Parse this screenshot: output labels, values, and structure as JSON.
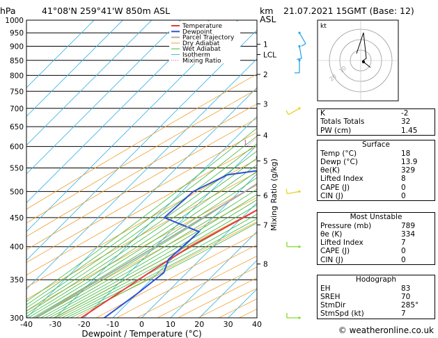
{
  "header": {
    "hpa_label": "hPa",
    "location": "41°08'N  259°41'W  850m  ASL",
    "km_label": "km",
    "asl_label": "ASL",
    "datetime": "21.07.2021  15GMT  (Base: 12)"
  },
  "chart_data": {
    "type": "line",
    "title": "",
    "xlabel": "Dewpoint / Temperature (°C)",
    "ylabel": "hPa",
    "xlim": [
      -40,
      40
    ],
    "ylim": [
      1000,
      300
    ],
    "y_scale": "log",
    "x_ticks": [
      "-40",
      "-30",
      "-20",
      "-10",
      "0",
      "10",
      "20",
      "30",
      "40"
    ],
    "pressure_ticks": [
      300,
      350,
      400,
      450,
      500,
      550,
      600,
      650,
      700,
      750,
      800,
      850,
      900,
      950,
      1000
    ],
    "km_ticks": [
      {
        "label": "8",
        "p": 373
      },
      {
        "label": "7",
        "p": 437
      },
      {
        "label": "6",
        "p": 492
      },
      {
        "label": "5",
        "p": 566
      },
      {
        "label": "4",
        "p": 628
      },
      {
        "label": "3",
        "p": 713
      },
      {
        "label": "2",
        "p": 803
      },
      {
        "label": "LCL",
        "p": 870
      },
      {
        "label": "1",
        "p": 907
      }
    ],
    "mixing_ratio_label": "Mixing Ratio (g/kg)",
    "mixing_ratio_values": [
      "1",
      "2",
      "3",
      "4",
      "6",
      "8",
      "10",
      "15",
      "20",
      "25"
    ],
    "legend": [
      "Temperature",
      "Dewpoint",
      "Parcel Trajectory",
      "Dry Adiabat",
      "Wet Adiabat",
      "Isotherm",
      "Mixing Ratio"
    ],
    "legend_placement": "top-left",
    "series": [
      {
        "name": "Temperature",
        "color": "#e8383d",
        "points": [
          [
            915,
            20.5
          ],
          [
            875,
            23.5
          ],
          [
            862,
            21
          ],
          [
            843,
            20
          ],
          [
            800,
            19
          ],
          [
            770,
            21
          ],
          [
            735,
            21
          ],
          [
            700,
            17
          ],
          [
            645,
            15
          ],
          [
            600,
            13
          ],
          [
            552,
            10
          ],
          [
            500,
            7.5
          ],
          [
            450,
            0.5
          ],
          [
            400,
            -8
          ],
          [
            365,
            -12.5
          ],
          [
            300,
            -21
          ]
        ]
      },
      {
        "name": "Dewpoint",
        "color": "#2e4fd6",
        "points": [
          [
            915,
            14.5
          ],
          [
            875,
            11
          ],
          [
            800,
            13.5
          ],
          [
            780,
            8
          ],
          [
            760,
            -7
          ],
          [
            740,
            0
          ],
          [
            720,
            -5
          ],
          [
            735,
            -4
          ],
          [
            690,
            -8
          ],
          [
            655,
            -2
          ],
          [
            640,
            -10
          ],
          [
            600,
            -11
          ],
          [
            575,
            -16
          ],
          [
            545,
            -10
          ],
          [
            535,
            -20
          ],
          [
            500,
            -26
          ],
          [
            450,
            -27
          ],
          [
            425,
            -10
          ],
          [
            380,
            -11
          ],
          [
            360,
            -8
          ],
          [
            330,
            -10
          ],
          [
            300,
            -13
          ]
        ]
      },
      {
        "name": "Parcel Trajectory",
        "color": "#aaaaaa",
        "points": [
          [
            870,
            13.9
          ],
          [
            800,
            11
          ],
          [
            700,
            6
          ],
          [
            600,
            0
          ],
          [
            500,
            -8
          ],
          [
            400,
            -20
          ],
          [
            300,
            -37
          ]
        ]
      }
    ],
    "wind_profile": [
      {
        "p": 300,
        "dir": 270,
        "spd": 15
      },
      {
        "p": 400,
        "dir": 270,
        "spd": 15
      },
      {
        "p": 500,
        "dir": 260,
        "spd": 10
      },
      {
        "p": 700,
        "dir": 240,
        "spd": 10
      },
      {
        "p": 850,
        "dir": 180,
        "spd": 5
      },
      {
        "p": 900,
        "dir": 170,
        "spd": 5
      },
      {
        "p": 950,
        "dir": 150,
        "spd": 5
      }
    ],
    "hodograph": {
      "unit_label": "kt",
      "ring_labels": [
        "10",
        "20"
      ]
    }
  },
  "indices": {
    "general": [
      {
        "label": "K",
        "value": "-2"
      },
      {
        "label": "Totals Totals",
        "value": "32"
      },
      {
        "label": "PW (cm)",
        "value": "1.45"
      }
    ],
    "surface_title": "Surface",
    "surface": [
      {
        "label": "Temp (°C)",
        "value": "18"
      },
      {
        "label": "Dewp (°C)",
        "value": "13.9"
      },
      {
        "label": "θe(K)",
        "value": "329"
      },
      {
        "label": "Lifted Index",
        "value": "8"
      },
      {
        "label": "CAPE (J)",
        "value": "0"
      },
      {
        "label": "CIN (J)",
        "value": "0"
      }
    ],
    "unstable_title": "Most Unstable",
    "unstable": [
      {
        "label": "Pressure (mb)",
        "value": "789"
      },
      {
        "label": "θe (K)",
        "value": "334"
      },
      {
        "label": "Lifted Index",
        "value": "7"
      },
      {
        "label": "CAPE (J)",
        "value": "0"
      },
      {
        "label": "CIN (J)",
        "value": "0"
      }
    ],
    "hodo_title": "Hodograph",
    "hodo": [
      {
        "label": "EH",
        "value": "83"
      },
      {
        "label": "SREH",
        "value": "70"
      },
      {
        "label": "StmDir",
        "value": "285°"
      },
      {
        "label": "StmSpd (kt)",
        "value": "7"
      }
    ]
  },
  "footer": "© weatheronline.co.uk"
}
